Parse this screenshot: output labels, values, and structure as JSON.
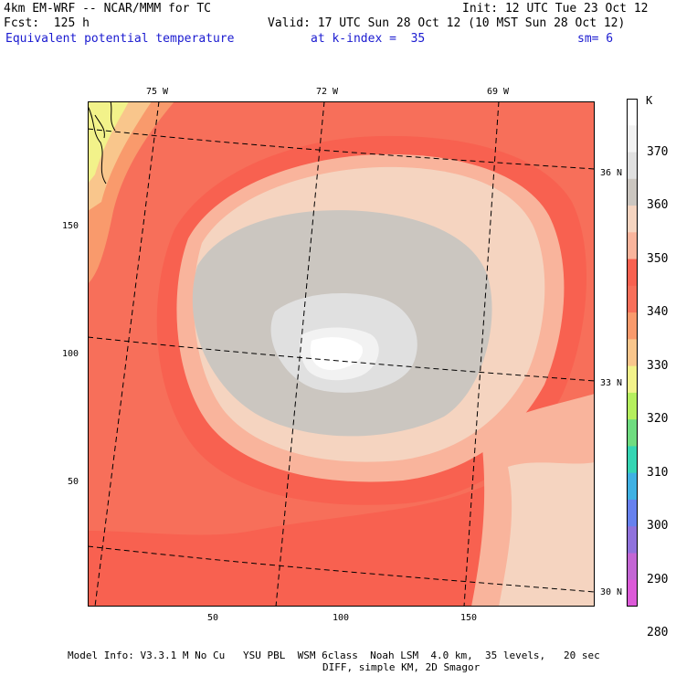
{
  "header": {
    "model": "4km EM-WRF -- NCAR/MMM for TC",
    "forecast": "Fcst:  125 h",
    "init": "Init: 12 UTC Tue 23 Oct 12",
    "valid": "Valid: 17 UTC Sun 28 Oct 12 (10 MST Sun 28 Oct 12)",
    "field": "Equivalent potential temperature",
    "level": "at k-index =  35",
    "smoothing": "sm= 6"
  },
  "map": {
    "lon_labels": [
      "75 W",
      "72 W",
      "69 W"
    ],
    "lat_labels": [
      "36 N",
      "33 N",
      "30 N"
    ],
    "x_ticks": [
      "50",
      "100",
      "150"
    ],
    "y_ticks": [
      "150",
      "100",
      "50"
    ]
  },
  "colorbar": {
    "unit": "K",
    "labels": [
      "370",
      "360",
      "350",
      "340",
      "330",
      "320",
      "310",
      "300",
      "290",
      "280"
    ],
    "colors": [
      "#ffffff",
      "#f2f2f2",
      "#e0e0e0",
      "#cbc6c0",
      "#f5d4c0",
      "#f9b49c",
      "#f86150",
      "#f76f5a",
      "#f99a6c",
      "#f9c68c",
      "#f2f28a",
      "#b5ef5e",
      "#6fdc80",
      "#35d5b3",
      "#3fb1e3",
      "#6781ee",
      "#9072dc",
      "#c366d4",
      "#dc5ad8"
    ]
  },
  "footer": {
    "line1": "Model Info: V3.3.1 M No Cu   YSU PBL  WSM 6class  Noah LSM  4.0 km,  35 levels,   20 sec",
    "line2": "DIFF, simple KM, 2D Smagor"
  }
}
